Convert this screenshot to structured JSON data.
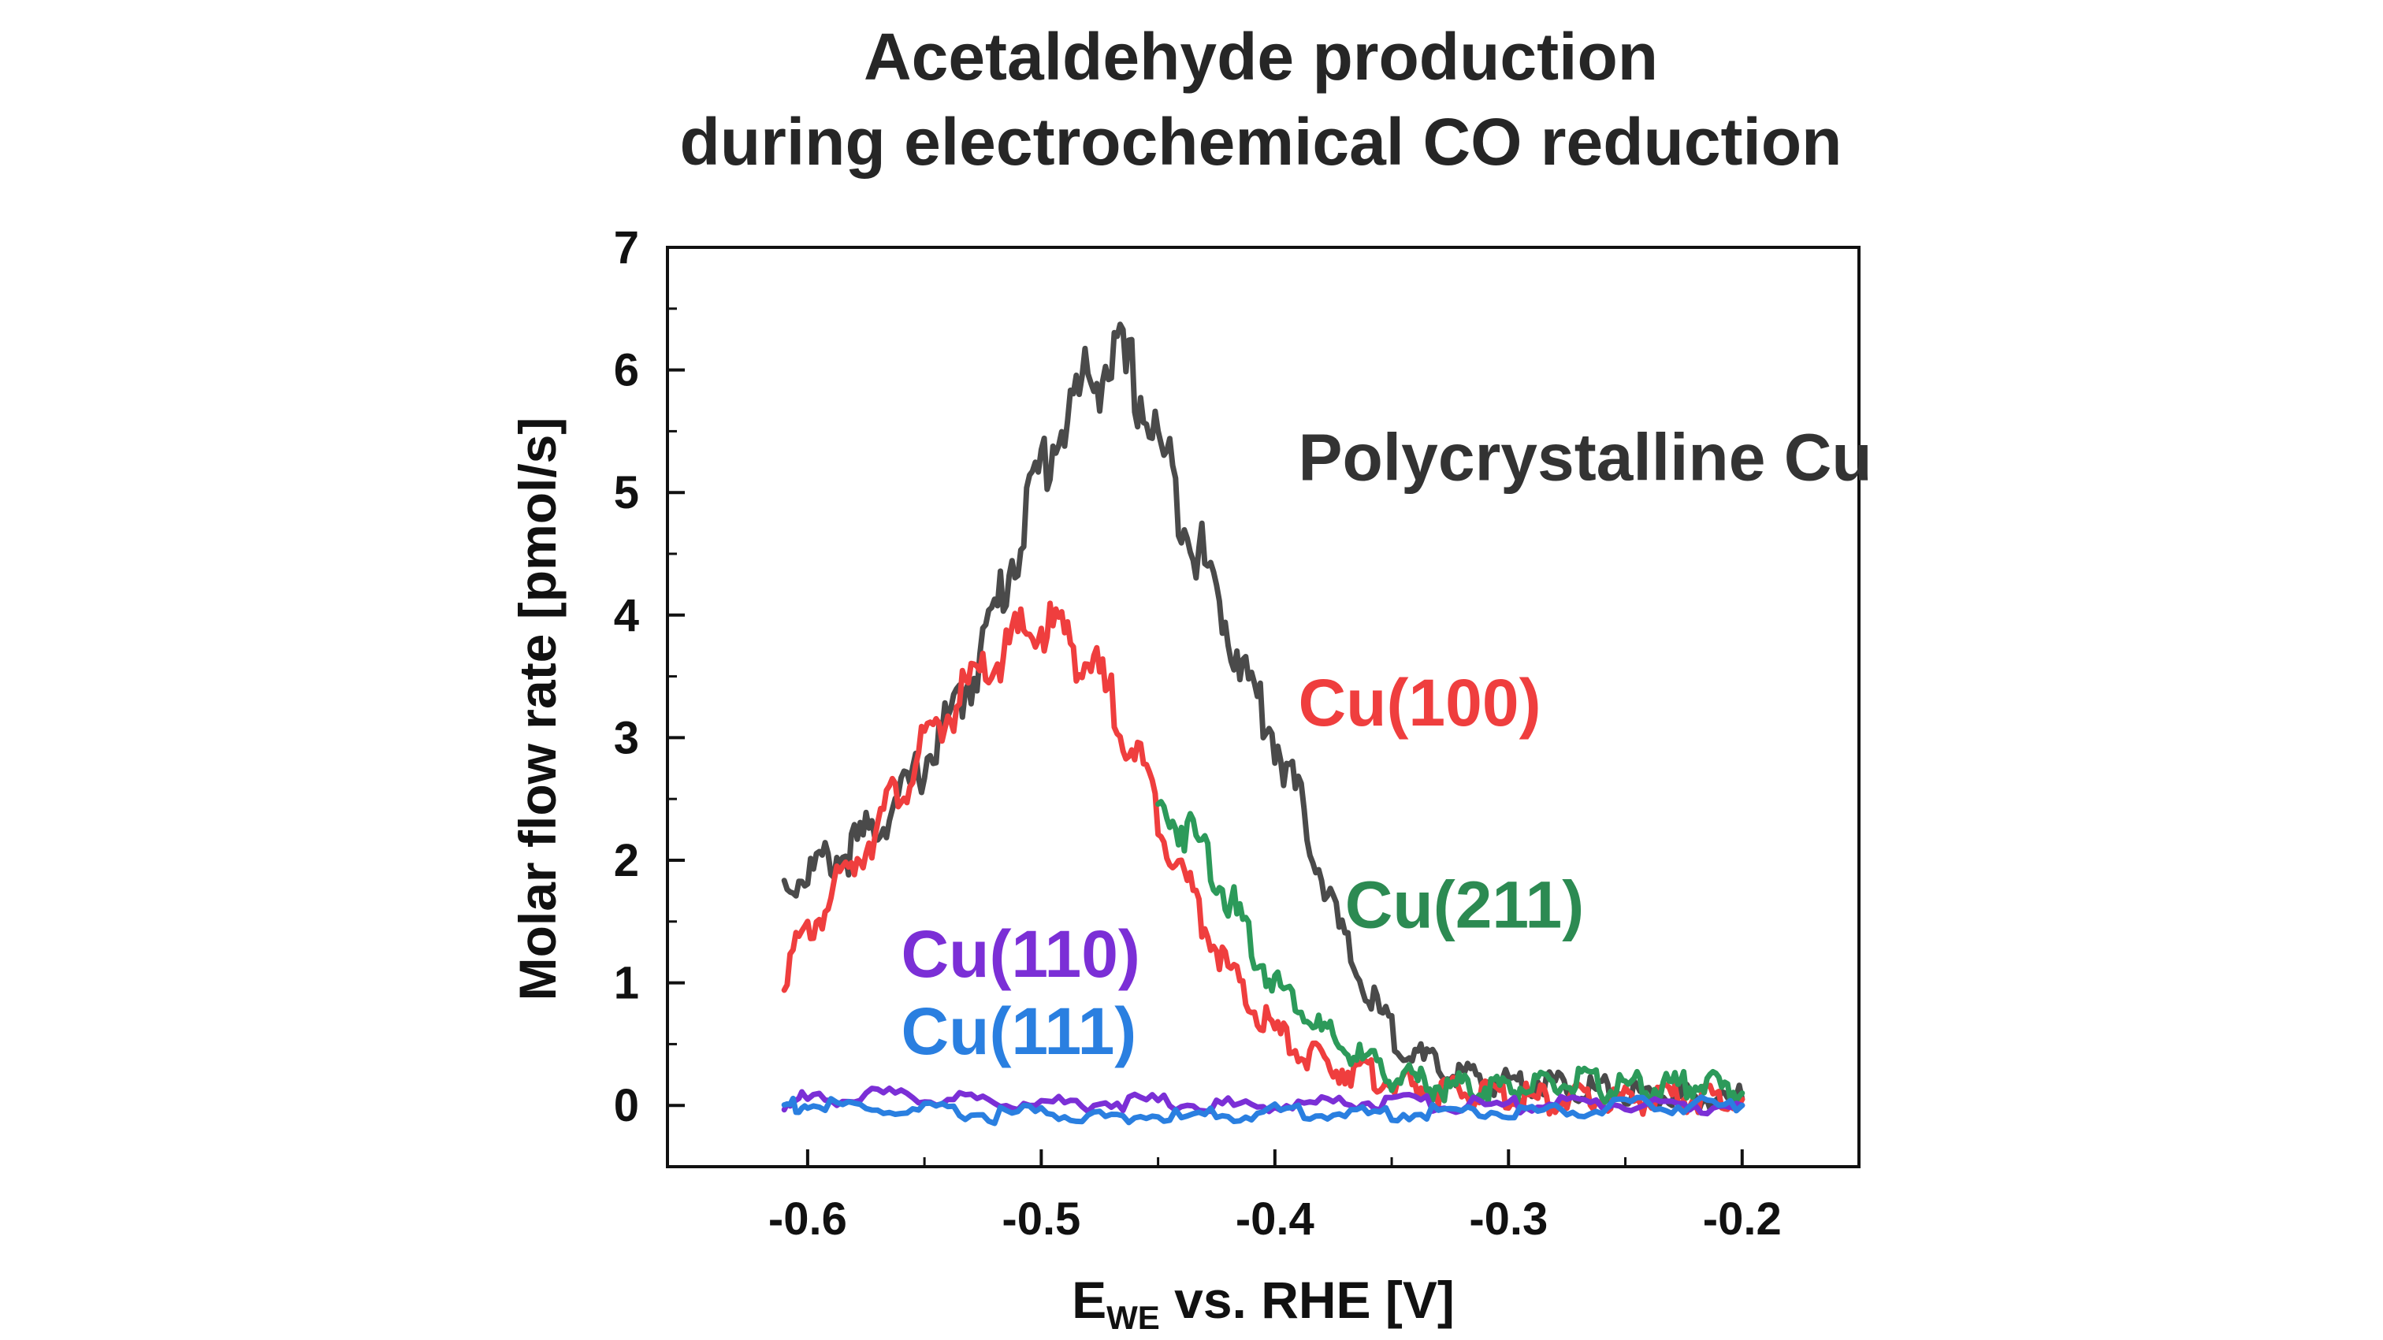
{
  "chart_data": {
    "type": "line",
    "title_lines": [
      "Acetaldehyde production",
      "during electrochemical CO reduction"
    ],
    "xlabel": "E",
    "xlabel_sub": "WE",
    "xlabel_rest": " vs. RHE [V]",
    "ylabel": "Molar flow rate [pmol/s]",
    "xlim": [
      -0.66,
      -0.15
    ],
    "ylim": [
      -0.5,
      7
    ],
    "xticks": [
      -0.6,
      -0.5,
      -0.4,
      -0.3,
      -0.2
    ],
    "xtick_labels": [
      "-0.6",
      "-0.5",
      "-0.4",
      "-0.3",
      "-0.2"
    ],
    "yticks": [
      0,
      1,
      2,
      3,
      4,
      5,
      6,
      7
    ],
    "ytick_labels": [
      "0",
      "1",
      "2",
      "3",
      "4",
      "5",
      "6",
      "7"
    ],
    "grid": false,
    "series": [
      {
        "name": "Polycrystalline Cu",
        "color": "#4a4a4a",
        "x": [
          -0.61,
          -0.6,
          -0.59,
          -0.58,
          -0.57,
          -0.56,
          -0.55,
          -0.54,
          -0.53,
          -0.52,
          -0.51,
          -0.5,
          -0.49,
          -0.48,
          -0.47,
          -0.46,
          -0.45,
          -0.44,
          -0.43,
          -0.42,
          -0.41,
          -0.4,
          -0.39,
          -0.38,
          -0.37,
          -0.36,
          -0.35,
          -0.34,
          -0.33,
          -0.32,
          -0.31,
          -0.3,
          -0.29,
          -0.28,
          -0.27,
          -0.26,
          -0.25,
          -0.24,
          -0.23,
          -0.22,
          -0.21,
          -0.2
        ],
        "y": [
          1.8,
          1.9,
          2.0,
          2.1,
          2.3,
          2.5,
          2.8,
          3.1,
          3.5,
          4.0,
          4.6,
          5.2,
          5.6,
          5.9,
          6.1,
          5.9,
          5.4,
          4.9,
          4.4,
          3.9,
          3.4,
          3.0,
          2.5,
          1.9,
          1.3,
          0.9,
          0.6,
          0.4,
          0.3,
          0.25,
          0.2,
          0.2,
          0.2,
          0.18,
          0.15,
          0.12,
          0.1,
          0.08,
          0.07,
          0.05,
          0.05,
          0.05
        ]
      },
      {
        "name": "Cu(100)",
        "color": "#ef3e3e",
        "x": [
          -0.61,
          -0.6,
          -0.59,
          -0.58,
          -0.57,
          -0.56,
          -0.55,
          -0.54,
          -0.53,
          -0.52,
          -0.51,
          -0.5,
          -0.49,
          -0.48,
          -0.47,
          -0.46,
          -0.45,
          -0.44,
          -0.43,
          -0.42,
          -0.41,
          -0.4,
          -0.39,
          -0.38,
          -0.37,
          -0.36,
          -0.35,
          -0.34,
          -0.33,
          -0.32,
          -0.31,
          -0.3,
          -0.29,
          -0.28,
          -0.27,
          -0.26,
          -0.25,
          -0.24,
          -0.23,
          -0.22,
          -0.21,
          -0.2
        ],
        "y": [
          1.1,
          1.4,
          1.7,
          2.0,
          2.3,
          2.6,
          2.9,
          3.2,
          3.4,
          3.6,
          3.8,
          3.9,
          3.85,
          3.6,
          3.3,
          2.9,
          2.4,
          1.9,
          1.5,
          1.1,
          0.8,
          0.6,
          0.45,
          0.35,
          0.3,
          0.25,
          0.2,
          0.15,
          0.12,
          0.1,
          0.1,
          0.08,
          0.06,
          0.05,
          0.05,
          0.05,
          0.05,
          0.05,
          0.05,
          0.05,
          0.05,
          0.05
        ]
      },
      {
        "name": "Cu(211)",
        "color": "#2c9a5a",
        "x": [
          -0.45,
          -0.44,
          -0.43,
          -0.42,
          -0.41,
          -0.4,
          -0.39,
          -0.38,
          -0.37,
          -0.36,
          -0.35,
          -0.34,
          -0.33,
          -0.32,
          -0.31,
          -0.3,
          -0.29,
          -0.28,
          -0.27,
          -0.26,
          -0.25,
          -0.24,
          -0.23,
          -0.22,
          -0.21,
          -0.2
        ],
        "y": [
          2.4,
          2.3,
          2.1,
          1.7,
          1.3,
          1.0,
          0.85,
          0.6,
          0.45,
          0.35,
          0.25,
          0.2,
          0.15,
          0.15,
          0.15,
          0.15,
          0.15,
          0.15,
          0.2,
          0.15,
          0.15,
          0.15,
          0.15,
          0.2,
          0.15,
          0.1
        ]
      },
      {
        "name": "Cu(110)",
        "color": "#7b2fd6",
        "x": [
          -0.61,
          -0.6,
          -0.58,
          -0.56,
          -0.54,
          -0.52,
          -0.5,
          -0.48,
          -0.46,
          -0.44,
          -0.42,
          -0.4,
          -0.38,
          -0.36,
          -0.34,
          -0.32,
          -0.3,
          -0.28,
          -0.26,
          -0.24,
          -0.22,
          -0.2
        ],
        "y": [
          0.02,
          0.05,
          0.08,
          0.07,
          0.05,
          0.03,
          0.02,
          0.02,
          0.03,
          0.02,
          0.0,
          0.0,
          0.02,
          0.03,
          0.02,
          0.0,
          0.0,
          0.02,
          0.02,
          0.0,
          0.0,
          0.0
        ]
      },
      {
        "name": "Cu(111)",
        "color": "#2a7fe0",
        "x": [
          -0.61,
          -0.6,
          -0.58,
          -0.56,
          -0.54,
          -0.52,
          -0.5,
          -0.48,
          -0.46,
          -0.44,
          -0.42,
          -0.4,
          -0.38,
          -0.36,
          -0.34,
          -0.32,
          -0.3,
          -0.28,
          -0.26,
          -0.24,
          -0.22,
          -0.2
        ],
        "y": [
          0.0,
          0.0,
          -0.02,
          -0.05,
          -0.05,
          -0.08,
          -0.05,
          -0.1,
          -0.08,
          -0.1,
          -0.08,
          -0.05,
          -0.05,
          -0.08,
          -0.05,
          -0.05,
          -0.05,
          -0.05,
          -0.02,
          0.0,
          0.0,
          0.0
        ]
      }
    ],
    "annotations": [
      {
        "text": "Polycrystalline Cu",
        "color": "#333333",
        "at_x": -0.39,
        "at_y": 5.1
      },
      {
        "text": "Cu(100)",
        "color": "#ef3e3e",
        "at_x": -0.39,
        "at_y": 3.1
      },
      {
        "text": "Cu(211)",
        "color": "#2c8a52",
        "at_x": -0.37,
        "at_y": 1.45
      },
      {
        "text": "Cu(110)",
        "color": "#7b2fd6",
        "at_x": -0.56,
        "at_y": 1.05
      },
      {
        "text": "Cu(111)",
        "color": "#2a7fe0",
        "at_x": -0.56,
        "at_y": 0.42
      }
    ]
  }
}
